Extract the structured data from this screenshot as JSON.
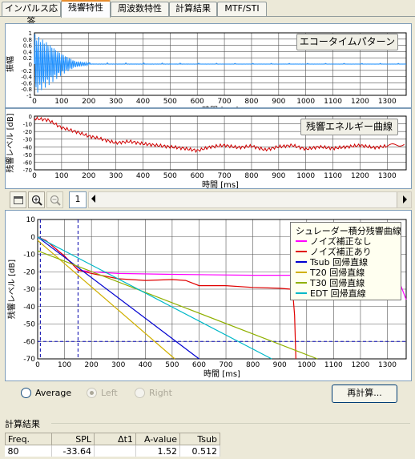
{
  "tabs": [
    "インパルス応答",
    "残響特性",
    "周波数特性",
    "計算結果",
    "MTF/STI"
  ],
  "active_tab": 1,
  "impulse_panel": {
    "ylabel": "振幅",
    "xlabel": "時間 [ms]",
    "overlay_button": "エコータイムパターン",
    "yticks": [
      "1",
      "0.8",
      "0.6",
      "0.4",
      "0.2",
      "0",
      "-0.2",
      "-0.4",
      "-0.6",
      "-0.8",
      "-1"
    ],
    "xticks": [
      "0",
      "100",
      "200",
      "300",
      "400",
      "500",
      "600",
      "700",
      "800",
      "900",
      "1000",
      "1100",
      "1200",
      "1300"
    ],
    "color": "#1e90ff"
  },
  "energy_panel": {
    "ylabel": "残響レベル [dB]",
    "xlabel": "時間 [ms]",
    "overlay_button": "残響エネルギー曲線",
    "yticks": [
      "0",
      "-10",
      "-20",
      "-30",
      "-40",
      "-50",
      "-60",
      "-70"
    ],
    "xticks": [
      "0",
      "100",
      "200",
      "300",
      "400",
      "500",
      "600",
      "700",
      "800",
      "900",
      "1000",
      "1100",
      "1200",
      "1300"
    ],
    "color": "#d00000"
  },
  "toolbar": {
    "page_value": "1",
    "icons": [
      "panel-layout-icon",
      "zoom-in-icon",
      "zoom-out-icon"
    ]
  },
  "decay_panel": {
    "ylabel": "残響レベル [dB]",
    "xlabel": "時間 [ms]",
    "yticks": [
      "10",
      "0",
      "-10",
      "-20",
      "-30",
      "-40",
      "-50",
      "-60",
      "-70"
    ],
    "xticks": [
      "0",
      "100",
      "200",
      "300",
      "400",
      "500",
      "600",
      "700",
      "800",
      "900",
      "1000",
      "1100",
      "1200",
      "1300"
    ],
    "legend_title": "シュレーダー積分残響曲線",
    "legend": [
      {
        "label": "ノイズ補正なし",
        "color": "#ff00ff"
      },
      {
        "label": "ノイズ補正あり",
        "color": "#e00000"
      },
      {
        "label": "Tsub 回帰直線",
        "color": "#0000d0"
      },
      {
        "label": "T20 回帰直線",
        "color": "#d0b000"
      },
      {
        "label": "T30 回帰直線",
        "color": "#90b000"
      },
      {
        "label": "EDT 回帰直線",
        "color": "#00b8c8"
      }
    ]
  },
  "chart_data": [
    {
      "type": "line",
      "xlabel": "時間 [ms]",
      "ylabel": "振幅",
      "xlim": [
        0,
        1370
      ],
      "ylim": [
        -1,
        1
      ],
      "grid": true,
      "series": [
        {
          "x": [
            0,
            50,
            100,
            150,
            200,
            400,
            800,
            1370
          ],
          "y": [
            1,
            0.7,
            0.35,
            0.1,
            0.04,
            0.03,
            0.02,
            0.02
          ]
        }
      ]
    },
    {
      "type": "line",
      "xlabel": "時間 [ms]",
      "ylabel": "残響レベル [dB]",
      "xlim": [
        0,
        1370
      ],
      "ylim": [
        -70,
        0
      ],
      "grid": true,
      "series": [
        {
          "x": [
            0,
            50,
            100,
            150,
            200,
            250,
            300,
            350,
            400,
            450,
            500,
            550,
            600,
            650,
            700,
            750,
            800,
            850,
            900,
            950,
            1000,
            1050,
            1100,
            1150,
            1200,
            1250,
            1300,
            1370
          ],
          "y": [
            -3,
            -5,
            -15,
            -20,
            -26,
            -30,
            -35,
            -33,
            -36,
            -38,
            -40,
            -42,
            -45,
            -40,
            -38,
            -41,
            -39,
            -44,
            -40,
            -38,
            -43,
            -40,
            -42,
            -40,
            -38,
            -41,
            -39,
            -36
          ]
        }
      ]
    },
    {
      "type": "line",
      "xlabel": "時間 [ms]",
      "ylabel": "残響レベル [dB]",
      "xlim": [
        0,
        1370
      ],
      "ylim": [
        -70,
        10
      ],
      "grid": true,
      "series": [
        {
          "name": "ノイズ補正なし",
          "x": [
            0,
            30,
            100,
            150,
            200,
            300,
            500,
            800,
            1000,
            1200,
            1300,
            1330,
            1350,
            1370
          ],
          "y": [
            0,
            -2,
            -11,
            -19,
            -20,
            -21,
            -21.5,
            -22,
            -22,
            -22,
            -22,
            -23,
            -28,
            -36
          ]
        },
        {
          "name": "ノイズ補正あり",
          "x": [
            0,
            30,
            100,
            150,
            200,
            300,
            400,
            500,
            550,
            600,
            700,
            800,
            900,
            940,
            950,
            955,
            960
          ],
          "y": [
            0,
            -2,
            -11,
            -19,
            -21,
            -24,
            -25,
            -24.5,
            -25,
            -28,
            -28,
            -29,
            -29.5,
            -30,
            -35,
            -45,
            -70
          ]
        },
        {
          "name": "Tsub 回帰直線",
          "x": [
            0,
            600
          ],
          "y": [
            0,
            -70
          ]
        },
        {
          "name": "T20 回帰直線",
          "x": [
            0,
            510
          ],
          "y": [
            -2,
            -70
          ]
        },
        {
          "name": "T30 回帰直線",
          "x": [
            0,
            1040
          ],
          "y": [
            -8,
            -70
          ]
        },
        {
          "name": "EDT 回帰直線",
          "x": [
            0,
            870
          ],
          "y": [
            0,
            -70
          ]
        }
      ],
      "markers": {
        "vlines_ms": [
          10,
          150
        ],
        "hline_db": -60
      }
    }
  ],
  "options": {
    "radios": [
      {
        "label": "Average",
        "selected": false,
        "enabled": true
      },
      {
        "label": "Left",
        "selected": true,
        "enabled": false
      },
      {
        "label": "Right",
        "selected": false,
        "enabled": false
      }
    ],
    "recalc_label": "再計算..."
  },
  "results": {
    "section_title": "計算結果",
    "headers": [
      "Freq.",
      "SPL",
      "Δt1",
      "A-value",
      "Tsub"
    ],
    "rows": [
      [
        "80",
        "-33.64",
        "",
        "1.52",
        "0.512"
      ]
    ]
  }
}
